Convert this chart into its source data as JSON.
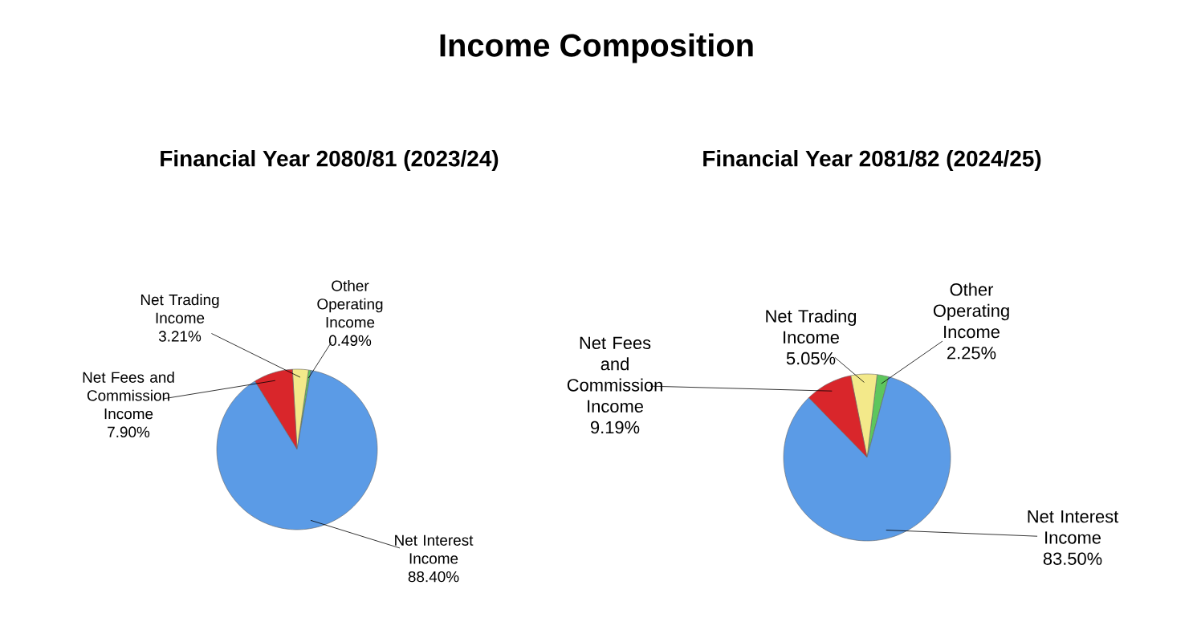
{
  "chart_data": [
    {
      "type": "other",
      "title": "Income Composition"
    },
    {
      "type": "pie",
      "title": "Financial Year 2080/81 (2023/24)",
      "categories": [
        "Net Interest Income",
        "Net Fees and Commission Income",
        "Net Trading Income",
        "Other Operating Income"
      ],
      "values": [
        88.4,
        7.9,
        3.21,
        0.49
      ],
      "value_labels": [
        "88.40%",
        "7.90%",
        "3.21%",
        "0.49%"
      ],
      "colors": [
        "#5b9be6",
        "#d9262b",
        "#f3e98a",
        "#5dc65d"
      ]
    },
    {
      "type": "pie",
      "title": "Financial Year 2081/82 (2024/25)",
      "categories": [
        "Net Interest Income",
        "Net Fees and Commission Income",
        "Net Trading Income",
        "Other Operating Income"
      ],
      "values": [
        83.5,
        9.19,
        5.05,
        2.25
      ],
      "value_labels": [
        "83.50%",
        "9.19%",
        "5.05%",
        "2.25%"
      ],
      "colors": [
        "#5b9be6",
        "#d9262b",
        "#f3e98a",
        "#5dc65d"
      ]
    }
  ]
}
